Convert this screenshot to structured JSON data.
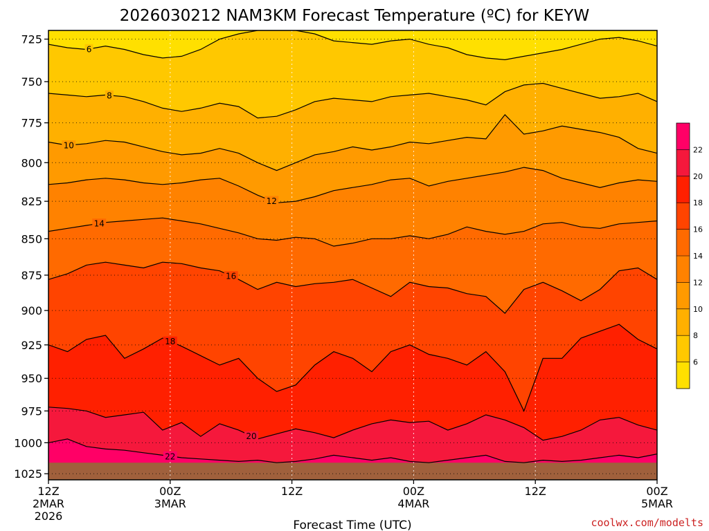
{
  "chart_data": {
    "type": "heatmap",
    "title": "2026030212 NAM3KM Forecast Temperature (ºC) for KEYW",
    "xlabel": "Forecast Time (UTC)",
    "ylabel": "",
    "y_axis": {
      "scale": "log",
      "inverted": true,
      "ylim": [
        720,
        1030
      ],
      "ticks": [
        725,
        750,
        775,
        800,
        825,
        850,
        875,
        900,
        925,
        950,
        975,
        1000,
        1025
      ]
    },
    "x_axis": {
      "xlim_hours": [
        0,
        60
      ],
      "ticks": [
        {
          "hour": 0,
          "line1": "12Z",
          "line2": "2MAR",
          "line3": "2026"
        },
        {
          "hour": 12,
          "line1": "00Z",
          "line2": "3MAR",
          "line3": ""
        },
        {
          "hour": 24,
          "line1": "12Z",
          "line2": "",
          "line3": ""
        },
        {
          "hour": 36,
          "line1": "00Z",
          "line2": "4MAR",
          "line3": ""
        },
        {
          "hour": 48,
          "line1": "12Z",
          "line2": "",
          "line3": ""
        },
        {
          "hour": 60,
          "line1": "00Z",
          "line2": "5MAR",
          "line3": ""
        }
      ]
    },
    "grid": true,
    "colorbar": {
      "position": "right",
      "levels": [
        4,
        6,
        8,
        10,
        12,
        14,
        16,
        18,
        20,
        22,
        24
      ],
      "colors": [
        "#ffe000",
        "#ffc800",
        "#ffb000",
        "#ff9a00",
        "#ff8200",
        "#ff6a00",
        "#ff4400",
        "#ff2000",
        "#f5183c",
        "#ff0066"
      ],
      "tick_labels": [
        "6",
        "8",
        "10",
        "12",
        "14",
        "16",
        "18",
        "20",
        "22"
      ]
    },
    "surface": {
      "pressure_hpa": 1016,
      "color": "#a0603c"
    },
    "contours": [
      {
        "level": 6,
        "label": "6",
        "label_hour": 4,
        "pressure": [
          728,
          730,
          731,
          729,
          731,
          734,
          736,
          735,
          731,
          725,
          722,
          720,
          720,
          720,
          722,
          726,
          727,
          728,
          726,
          725,
          728,
          730,
          734,
          736,
          737,
          735,
          733,
          731,
          728,
          725,
          724,
          726,
          729
        ]
      },
      {
        "level": 8,
        "label": "8",
        "label_hour": 6,
        "pressure": [
          757,
          758,
          759,
          758,
          759,
          762,
          766,
          768,
          766,
          763,
          765,
          772,
          771,
          767,
          762,
          760,
          761,
          762,
          759,
          758,
          757,
          759,
          761,
          764,
          756,
          752,
          751,
          754,
          757,
          760,
          759,
          757,
          762
        ]
      },
      {
        "level": 10,
        "label": "10",
        "label_hour": 2,
        "pressure": [
          787,
          789,
          788,
          786,
          787,
          790,
          793,
          795,
          794,
          791,
          794,
          800,
          805,
          800,
          795,
          793,
          790,
          792,
          790,
          787,
          788,
          786,
          784,
          785,
          770,
          782,
          780,
          777,
          779,
          781,
          784,
          791,
          794
        ]
      },
      {
        "level": 12,
        "label": "12",
        "label_hour": 22,
        "pressure": [
          814,
          813,
          811,
          810,
          811,
          813,
          814,
          813,
          811,
          810,
          815,
          821,
          826,
          825,
          822,
          818,
          816,
          814,
          811,
          810,
          815,
          812,
          810,
          808,
          806,
          803,
          805,
          810,
          813,
          816,
          813,
          811,
          812
        ]
      },
      {
        "level": 14,
        "label": "14",
        "label_hour": 5,
        "pressure": [
          845,
          843,
          841,
          839,
          838,
          837,
          836,
          838,
          840,
          843,
          846,
          850,
          851,
          849,
          850,
          855,
          853,
          850,
          850,
          848,
          850,
          847,
          842,
          845,
          847,
          845,
          840,
          839,
          842,
          843,
          840,
          839,
          838
        ]
      },
      {
        "level": 16,
        "label": "16",
        "label_hour": 18,
        "pressure": [
          878,
          874,
          868,
          866,
          868,
          870,
          866,
          867,
          870,
          872,
          878,
          885,
          880,
          883,
          881,
          880,
          878,
          884,
          890,
          880,
          883,
          884,
          888,
          890,
          902,
          885,
          880,
          886,
          893,
          885,
          872,
          870,
          878
        ]
      },
      {
        "level": 18,
        "label": "18",
        "label_hour": 12,
        "pressure": [
          925,
          930,
          921,
          918,
          935,
          928,
          920,
          926,
          933,
          940,
          935,
          950,
          960,
          955,
          940,
          930,
          935,
          945,
          930,
          925,
          932,
          935,
          940,
          930,
          945,
          975,
          935,
          935,
          920,
          915,
          910,
          921,
          928
        ]
      },
      {
        "level": 20,
        "label": "20",
        "label_hour": 20,
        "pressure": [
          972,
          973,
          975,
          980,
          978,
          976,
          990,
          984,
          995,
          985,
          990,
          997,
          993,
          989,
          992,
          996,
          990,
          985,
          982,
          984,
          983,
          990,
          985,
          978,
          982,
          988,
          998,
          995,
          990,
          982,
          980,
          986,
          990
        ]
      },
      {
        "level": 22,
        "label": "22",
        "label_hour": 12,
        "pressure": [
          1000,
          997,
          1003,
          1005,
          1006,
          1008,
          1010,
          1012,
          1013,
          1014,
          1015,
          1014,
          1016,
          1015,
          1013,
          1010,
          1012,
          1014,
          1012,
          1015,
          1016,
          1014,
          1012,
          1010,
          1015,
          1016,
          1014,
          1015,
          1014,
          1012,
          1010,
          1012,
          1009
        ]
      }
    ]
  },
  "credit": "coolwx.com/modelts"
}
